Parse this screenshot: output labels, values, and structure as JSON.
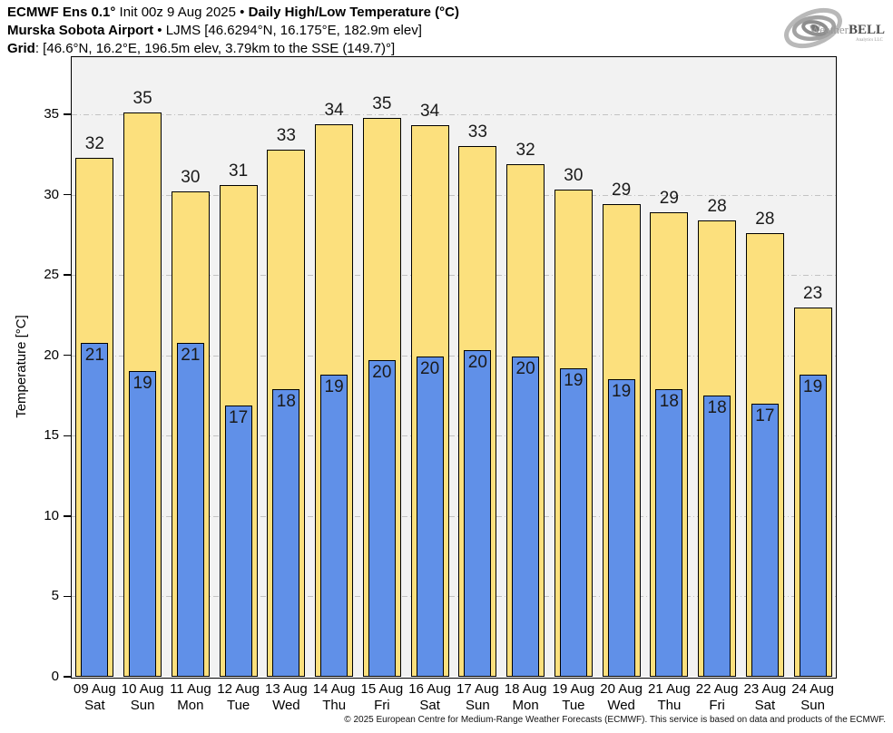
{
  "header": {
    "line1": {
      "bold1": "ECMWF Ens 0.1°",
      "mid": " Init 00z 9 Aug 2025 • ",
      "bold2": "Daily High/Low Temperature (°C)"
    },
    "line2": {
      "bold": "Murska Sobota Airport",
      "rest": " • LJMS [46.6294°N, 16.175°E, 182.9m elev]"
    },
    "line3": {
      "bold": "Grid",
      "rest": ": [46.6°N, 16.2°E, 196.5m elev, 3.79km to the SSE (149.7)°]"
    }
  },
  "logo": {
    "name_light": "Weather",
    "name_bold": "BELL",
    "subtitle": "Analytics LLC",
    "swirl_color": "#a8a8a8"
  },
  "chart_data": {
    "type": "bar",
    "title": "ECMWF Ens 0.1° Init 00z 9 Aug 2025 • Daily High/Low Temperature (°C) — Murska Sobota Airport",
    "ylabel": "Temperature [°C]",
    "xlabel": "",
    "ylim": [
      0,
      38.6
    ],
    "yticks": [
      0,
      5,
      10,
      15,
      20,
      25,
      30,
      35
    ],
    "grid": "horizontal dash-dot, gray",
    "legend_position": "none",
    "plot_bg": "#f2f2f2",
    "categories": [
      {
        "date": "09 Aug",
        "day": "Sat"
      },
      {
        "date": "10 Aug",
        "day": "Sun"
      },
      {
        "date": "11 Aug",
        "day": "Mon"
      },
      {
        "date": "12 Aug",
        "day": "Tue"
      },
      {
        "date": "13 Aug",
        "day": "Wed"
      },
      {
        "date": "14 Aug",
        "day": "Thu"
      },
      {
        "date": "15 Aug",
        "day": "Fri"
      },
      {
        "date": "16 Aug",
        "day": "Sat"
      },
      {
        "date": "17 Aug",
        "day": "Sun"
      },
      {
        "date": "18 Aug",
        "day": "Mon"
      },
      {
        "date": "19 Aug",
        "day": "Tue"
      },
      {
        "date": "20 Aug",
        "day": "Wed"
      },
      {
        "date": "21 Aug",
        "day": "Thu"
      },
      {
        "date": "22 Aug",
        "day": "Fri"
      },
      {
        "date": "23 Aug",
        "day": "Sat"
      },
      {
        "date": "24 Aug",
        "day": "Sun"
      }
    ],
    "series": [
      {
        "name": "Daily High",
        "color": "#FCE07D",
        "border_color": "#000000",
        "labels": [
          32,
          35,
          30,
          31,
          33,
          34,
          35,
          34,
          33,
          32,
          30,
          29,
          29,
          28,
          28,
          23
        ],
        "values": [
          32.3,
          35.1,
          30.2,
          30.6,
          32.8,
          34.4,
          34.8,
          34.3,
          33.0,
          31.9,
          30.3,
          29.4,
          28.9,
          28.4,
          27.6,
          23.0
        ]
      },
      {
        "name": "Daily Low",
        "color": "#6090E8",
        "border_color": "#000000",
        "labels": [
          21,
          19,
          21,
          17,
          18,
          19,
          20,
          20,
          20,
          20,
          19,
          19,
          18,
          18,
          17,
          19
        ],
        "values": [
          20.8,
          19.0,
          20.8,
          16.9,
          17.9,
          18.8,
          19.7,
          19.9,
          20.3,
          19.9,
          19.2,
          18.5,
          17.9,
          17.5,
          17.0,
          18.8
        ]
      }
    ]
  },
  "footer": {
    "copyright": "© 2025 European Centre for Medium-Range Weather Forecasts (ECMWF). This service is based on data and products of the ECMWF."
  }
}
